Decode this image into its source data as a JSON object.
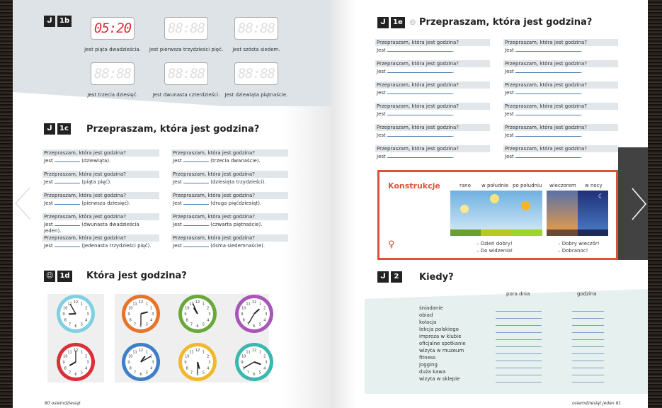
{
  "left_page": {
    "ex1b": {
      "badge": "1b",
      "displays": [
        {
          "time": "05:20",
          "active": true,
          "caption": "Jest piąta dwadzieścia."
        },
        {
          "time": "88:88",
          "active": false,
          "caption": "Jest pierwsza trzydzieści pięć."
        },
        {
          "time": "88:88",
          "active": false,
          "caption": "Jest szósta siedem."
        },
        {
          "time": "88:88",
          "active": false,
          "caption": "Jest trzecia dziesięć."
        },
        {
          "time": "88:88",
          "active": false,
          "caption": "Jest dwunasta czterdzieści."
        },
        {
          "time": "88:88",
          "active": false,
          "caption": "Jest dziewiąta piętnaście."
        }
      ]
    },
    "ex1c": {
      "badge": "1c",
      "title": "Przepraszam, która jest godzina?",
      "question": "Przepraszam, która jest godzina?",
      "prefix": "Jest",
      "hints": [
        "(dziewiąta).",
        "(trzecia dwanaście).",
        "(piąta pięć).",
        "(dziesiąta trzydzieści).",
        "(pierwsza dziesięć).",
        "(druga pięćdziesiąt).",
        "(dwunasta dwadzieścia jeden).",
        "(czwarta piętnaście).",
        "(jedenasta trzydzieści pięć).",
        "(ósma siedemnaście)."
      ]
    },
    "ex1d": {
      "badge": "1d",
      "title": "Która jest godzina?",
      "clocks": [
        {
          "color": "#7fd0e0",
          "time": "8:55"
        },
        {
          "color": "#e8742a",
          "time": "2:30"
        },
        {
          "color": "#6aa83a",
          "time": "10:56"
        },
        {
          "color": "#a856b8",
          "time": "1:35"
        },
        {
          "color": "#d9303a",
          "time": "8:00"
        },
        {
          "color": "#3f7fc8",
          "time": "1:10"
        },
        {
          "color": "#f0b82a",
          "time": "5:30"
        },
        {
          "color": "#3ab8b0",
          "time": "3:40"
        }
      ]
    },
    "footer": "80 osiemdziesiąt"
  },
  "right_page": {
    "ex1e": {
      "badge": "1e",
      "title": "Przepraszam, która jest godzina?",
      "question": "Przepraszam, która jest godzina?",
      "prefix": "Jest",
      "count": 12
    },
    "konstrukcje": {
      "title": "Konstrukcje",
      "labels": [
        "rano",
        "w południe",
        "po południu",
        "wieczorem",
        "w nocy"
      ],
      "day_phrases": [
        "– Dzień dobry!",
        "– Do widzenia!"
      ],
      "night_phrases": [
        "– Dobry wieczór!",
        "– Dobranoc!"
      ],
      "accent": "#d9533a"
    },
    "ex2": {
      "badge": "2",
      "title": "Kiedy?",
      "col1": "pora dnia",
      "col2": "godzina",
      "items": [
        "śniadanie",
        "obiad",
        "kolacja",
        "lekcja polskiego",
        "impreza w klubie",
        "oficjalne spotkanie",
        "wizyta w muzeum",
        "fitness",
        "jogging",
        "duża kawa",
        "wizyta w sklepie"
      ]
    },
    "footer": "osiemdziesiąt jeden 81"
  },
  "nav": {
    "prev_icon": "chevron-left-icon",
    "next_icon": "chevron-right-icon"
  }
}
